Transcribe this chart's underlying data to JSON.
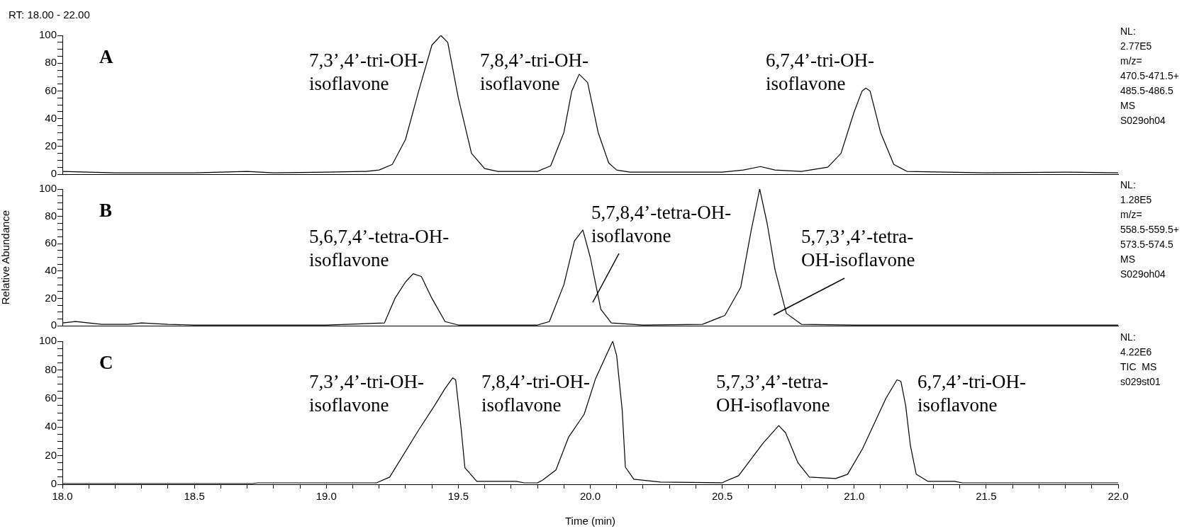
{
  "chart_data": [
    {
      "type": "line",
      "title": "A",
      "subtitle": "RT: 18.00 - 22.00",
      "tick_labels": "y",
      "xlim": [
        18,
        22
      ],
      "ylim": [
        0,
        100
      ],
      "yticks": [
        0,
        {
          "value": 5,
          "label": null
        },
        {
          "value": 10,
          "label": null
        },
        {
          "value": 15,
          "label": null
        },
        20,
        {
          "value": 25,
          "label": null
        },
        {
          "value": 30,
          "label": null
        },
        {
          "value": 35,
          "label": null
        },
        40,
        {
          "value": 45,
          "label": null
        },
        {
          "value": 50,
          "label": null
        },
        {
          "value": 55,
          "label": null
        },
        60,
        {
          "value": 65,
          "label": null
        },
        {
          "value": 70,
          "label": null
        },
        {
          "value": 75,
          "label": null
        },
        80,
        {
          "value": 85,
          "label": null
        },
        {
          "value": 90,
          "label": null
        },
        {
          "value": 95,
          "label": null
        },
        100
      ],
      "series": [
        {
          "color": "#000000",
          "x": [
            18.0,
            18.1,
            18.2,
            18.5,
            18.7,
            18.8,
            19.0,
            19.15,
            19.2,
            19.25,
            19.3,
            19.35,
            19.4,
            19.434,
            19.46,
            19.5,
            19.55,
            19.6,
            19.65,
            19.8,
            19.85,
            19.9,
            19.93,
            19.958,
            19.99,
            20.03,
            20.07,
            20.1,
            20.15,
            20.5,
            20.58,
            20.645,
            20.7,
            20.8,
            20.9,
            20.95,
            21.0,
            21.03,
            21.044,
            21.06,
            21.1,
            21.15,
            21.2,
            21.5,
            21.8,
            22.0
          ],
          "values": [
            2,
            1.5,
            1,
            1,
            2,
            1,
            1.5,
            2,
            3,
            7,
            25,
            60,
            93,
            100,
            95,
            55,
            15,
            4,
            2,
            2,
            6,
            30,
            60,
            72,
            66,
            30,
            8,
            3,
            1.5,
            1.5,
            3,
            5.5,
            3,
            2,
            5,
            15,
            45,
            60,
            62,
            60,
            30,
            7,
            2,
            1,
            1.5,
            1
          ]
        }
      ],
      "annotations": [
        "7,3’,4’-tri-OH-\nisoflavone",
        "7,8,4’-tri-OH-\nisoflavone",
        "6,7,4’-tri-OH-\nisoflavone",
        "NL:\n2.77E5\nm/z=\n470.5-471.5+\n485.5-486.5\nMS\nS029oh04"
      ]
    },
    {
      "type": "line",
      "title": "B",
      "ylabel": "Relative Abundance",
      "tick_labels": "y",
      "xlim": [
        18,
        22
      ],
      "ylim": [
        0,
        100
      ],
      "yticks": [
        0,
        {
          "value": 5,
          "label": null
        },
        {
          "value": 10,
          "label": null
        },
        {
          "value": 15,
          "label": null
        },
        20,
        {
          "value": 25,
          "label": null
        },
        {
          "value": 30,
          "label": null
        },
        {
          "value": 35,
          "label": null
        },
        40,
        {
          "value": 45,
          "label": null
        },
        {
          "value": 50,
          "label": null
        },
        {
          "value": 55,
          "label": null
        },
        60,
        {
          "value": 65,
          "label": null
        },
        {
          "value": 70,
          "label": null
        },
        {
          "value": 75,
          "label": null
        },
        80,
        {
          "value": 85,
          "label": null
        },
        {
          "value": 90,
          "label": null
        },
        {
          "value": 95,
          "label": null
        },
        100
      ],
      "series": [
        {
          "color": "#000000",
          "x": [
            18.0,
            18.05,
            18.1,
            18.15,
            18.25,
            18.3,
            18.4,
            18.5,
            19.0,
            19.22,
            19.26,
            19.3,
            19.329,
            19.36,
            19.4,
            19.45,
            19.5,
            19.8,
            19.845,
            19.9,
            19.94,
            19.972,
            20.0,
            20.04,
            20.08,
            20.2,
            20.425,
            20.51,
            20.57,
            20.61,
            20.642,
            20.67,
            20.7,
            20.743,
            20.8,
            21.0,
            21.5,
            22.0
          ],
          "values": [
            2,
            3,
            2,
            1,
            1,
            2,
            1,
            0.5,
            0.5,
            2,
            20,
            32,
            38,
            36,
            20,
            3,
            0.5,
            0.5,
            3,
            30,
            62,
            70,
            50,
            12,
            2,
            0.5,
            1,
            7.5,
            28,
            70,
            100,
            75,
            41,
            9,
            1,
            0.5,
            0.5,
            0.5
          ]
        }
      ],
      "annotations": [
        "5,6,7,4’-tetra-OH-\nisoflavone",
        "5,7,8,4’-tetra-OH-\nisoflavone",
        "5,7,3’,4’-tetra-\nOH-isoflavone",
        "NL:\n1.28E5\nm/z=\n558.5-559.5+\n573.5-574.5\nMS\nS029oh04"
      ]
    },
    {
      "type": "line",
      "title": "C",
      "xlabel": "Time (min)",
      "xlim": [
        18,
        22
      ],
      "ylim": [
        0,
        100
      ],
      "xticks": [
        {
          "value": 18,
          "label": "18.0"
        },
        {
          "value": 18.1,
          "label": null
        },
        {
          "value": 18.2,
          "label": null
        },
        {
          "value": 18.3,
          "label": null
        },
        {
          "value": 18.4,
          "label": null
        },
        {
          "value": 18.5,
          "label": "18.5"
        },
        {
          "value": 18.6,
          "label": null
        },
        {
          "value": 18.7,
          "label": null
        },
        {
          "value": 18.8,
          "label": null
        },
        {
          "value": 18.9,
          "label": null
        },
        {
          "value": 19,
          "label": "19.0"
        },
        {
          "value": 19.1,
          "label": null
        },
        {
          "value": 19.2,
          "label": null
        },
        {
          "value": 19.3,
          "label": null
        },
        {
          "value": 19.4,
          "label": null
        },
        {
          "value": 19.5,
          "label": "19.5"
        },
        {
          "value": 19.6,
          "label": null
        },
        {
          "value": 19.7,
          "label": null
        },
        {
          "value": 19.8,
          "label": null
        },
        {
          "value": 19.9,
          "label": null
        },
        {
          "value": 20,
          "label": "20.0"
        },
        {
          "value": 20.1,
          "label": null
        },
        {
          "value": 20.2,
          "label": null
        },
        {
          "value": 20.3,
          "label": null
        },
        {
          "value": 20.4,
          "label": null
        },
        {
          "value": 20.5,
          "label": "20.5"
        },
        {
          "value": 20.6,
          "label": null
        },
        {
          "value": 20.7,
          "label": null
        },
        {
          "value": 20.8,
          "label": null
        },
        {
          "value": 20.9,
          "label": null
        },
        {
          "value": 21,
          "label": "21.0"
        },
        {
          "value": 21.1,
          "label": null
        },
        {
          "value": 21.2,
          "label": null
        },
        {
          "value": 21.3,
          "label": null
        },
        {
          "value": 21.4,
          "label": null
        },
        {
          "value": 21.5,
          "label": "21.5"
        },
        {
          "value": 21.6,
          "label": null
        },
        {
          "value": 21.7,
          "label": null
        },
        {
          "value": 21.8,
          "label": null
        },
        {
          "value": 21.9,
          "label": null
        },
        {
          "value": 22,
          "label": "22.0"
        }
      ],
      "yticks": [
        0,
        {
          "value": 5,
          "label": null
        },
        {
          "value": 10,
          "label": null
        },
        {
          "value": 15,
          "label": null
        },
        20,
        {
          "value": 25,
          "label": null
        },
        {
          "value": 30,
          "label": null
        },
        {
          "value": 35,
          "label": null
        },
        40,
        {
          "value": 45,
          "label": null
        },
        {
          "value": 50,
          "label": null
        },
        {
          "value": 55,
          "label": null
        },
        60,
        {
          "value": 65,
          "label": null
        },
        {
          "value": 70,
          "label": null
        },
        {
          "value": 75,
          "label": null
        },
        80,
        {
          "value": 85,
          "label": null
        },
        {
          "value": 90,
          "label": null
        },
        {
          "value": 95,
          "label": null
        },
        100
      ],
      "series": [
        {
          "color": "#000000",
          "x": [
            18.0,
            18.72,
            18.74,
            19.19,
            19.24,
            19.29,
            19.35,
            19.41,
            19.45,
            19.479,
            19.49,
            19.511,
            19.525,
            19.57,
            19.72,
            19.75,
            19.8,
            19.82,
            19.87,
            19.918,
            19.977,
            20.02,
            20.06,
            20.085,
            20.1,
            20.121,
            20.133,
            20.165,
            20.266,
            20.5,
            20.51,
            20.562,
            20.656,
            20.714,
            20.74,
            20.787,
            20.83,
            20.93,
            20.975,
            21.032,
            21.08,
            21.12,
            21.162,
            21.177,
            21.195,
            21.213,
            21.235,
            21.28,
            21.38,
            21.41,
            22.0
          ],
          "values": [
            0.5,
            0.5,
            1,
            1,
            5,
            20,
            38,
            55,
            67,
            74.4,
            73,
            38.5,
            11.6,
            2,
            2,
            1,
            1,
            3,
            10,
            33,
            49,
            73.8,
            90,
            100,
            90,
            52,
            12,
            3.5,
            1.5,
            1,
            2,
            6,
            29,
            41,
            36,
            15,
            5,
            4,
            7,
            25,
            44,
            60,
            73,
            72,
            55,
            27,
            7,
            2,
            2,
            1,
            1
          ]
        }
      ],
      "annotations": [
        "7,3’,4’-tri-OH-\nisoflavone",
        "7,8,4’-tri-OH-\nisoflavone",
        "5,7,3’,4’-tetra-\nOH-isoflavone",
        "6,7,4’-tri-OH-\nisoflavone",
        "NL:\n4.22E6\nTIC  MS\ns029st01"
      ]
    }
  ]
}
